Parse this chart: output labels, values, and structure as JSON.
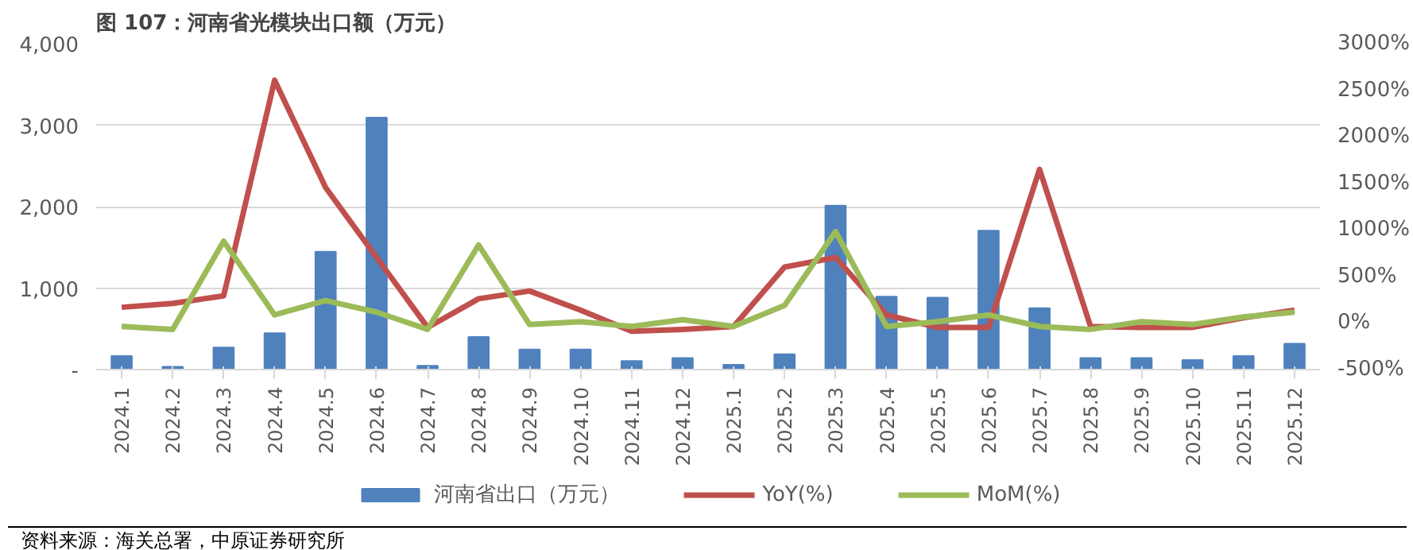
{
  "chart_data": {
    "type": "bar",
    "title": "图 107：河南省光模块出口额（万元）",
    "categories": [
      "2024.1",
      "2024.2",
      "2024.3",
      "2024.4",
      "2024.5",
      "2024.6",
      "2024.7",
      "2024.8",
      "2024.9",
      "2024.10",
      "2024.11",
      "2024.12",
      "2025.1",
      "2025.2",
      "2025.3",
      "2025.4",
      "2025.5",
      "2025.6",
      "2025.7",
      "2025.8",
      "2025.9",
      "2025.10",
      "2025.11",
      "2025.12"
    ],
    "series": [
      {
        "name": "河南省出口（万元）",
        "color": "#4f81bd",
        "values": [
          165,
          35,
          270,
          447,
          1447,
          3093,
          47,
          400,
          247,
          247,
          106,
          141,
          59,
          188,
          2011,
          894,
          882,
          1706,
          753,
          141,
          141,
          118,
          165,
          318
        ]
      },
      {
        "name": "YoY(%)",
        "type": "line",
        "axis": "y2",
        "color": "#c0504d",
        "values": [
          169,
          210,
          292,
          2608,
          1455,
          704,
          -47,
          261,
          344,
          138,
          -88,
          -68,
          -37,
          601,
          704,
          87,
          -47,
          -47,
          1651,
          -37,
          -47,
          -47,
          56,
          138
        ]
      },
      {
        "name": "MoM(%)",
        "type": "line",
        "axis": "y2",
        "color": "#9bbb59",
        "values": [
          -37,
          -68,
          879,
          87,
          241,
          117,
          -68,
          838,
          -16,
          15,
          -37,
          35,
          -37,
          189,
          982,
          -37,
          15,
          87,
          -37,
          -68,
          15,
          -16,
          66,
          117
        ]
      }
    ],
    "ylim": [
      0,
      4000
    ],
    "yticks": [
      {
        "value": 0,
        "label": "-"
      },
      {
        "value": 1000,
        "label": "1,000"
      },
      {
        "value": 2000,
        "label": "2,000"
      },
      {
        "value": 3000,
        "label": "3,000"
      },
      {
        "value": 4000,
        "label": "4,000"
      }
    ],
    "y2lim": [
      -500,
      3000
    ],
    "y2ticks": [
      {
        "value": -500,
        "label": "-500%"
      },
      {
        "value": 0,
        "label": "0%"
      },
      {
        "value": 500,
        "label": "500%"
      },
      {
        "value": 1000,
        "label": "1000%"
      },
      {
        "value": 1500,
        "label": "1500%"
      },
      {
        "value": 2000,
        "label": "2000%"
      },
      {
        "value": 2500,
        "label": "2500%"
      },
      {
        "value": 3000,
        "label": "3000%"
      }
    ],
    "grid": "y",
    "legend": "bottom",
    "annotations": [
      "资料来源：海关总署，中原证券研究所"
    ]
  }
}
